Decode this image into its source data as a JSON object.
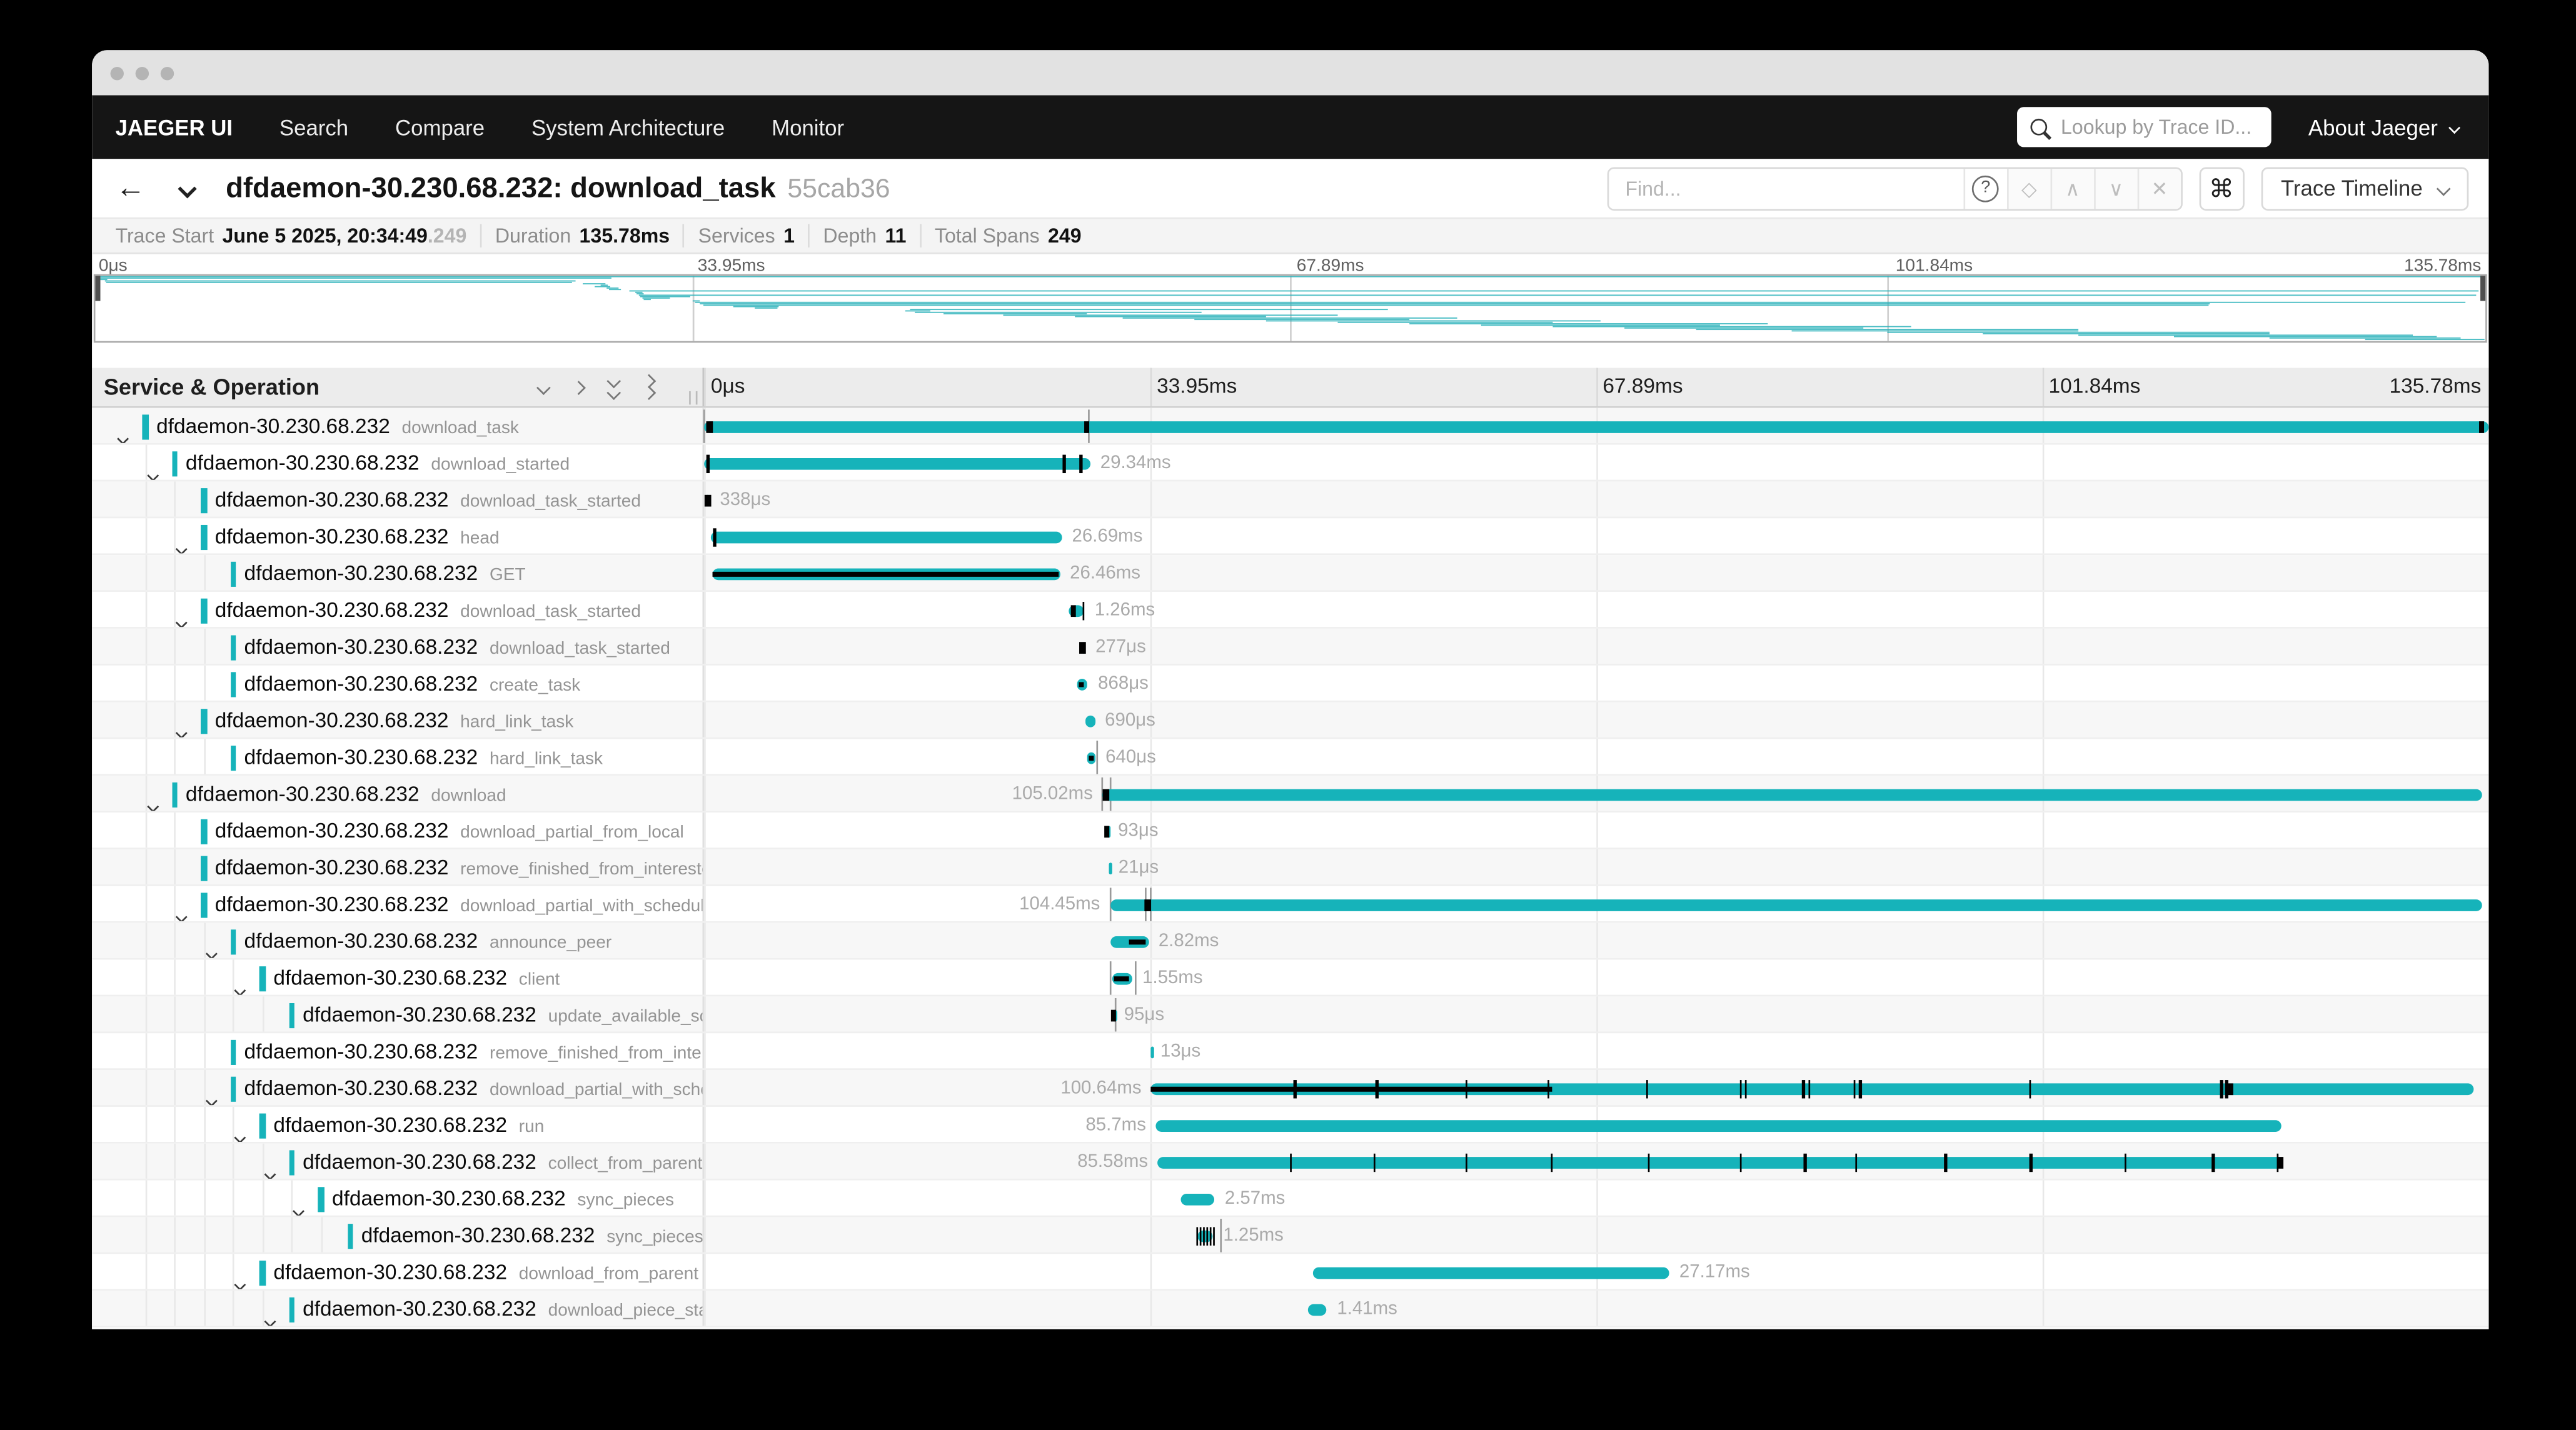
{
  "colors": {
    "accent": "#16B3BA",
    "nav_bg": "#151515",
    "marker_black": "#000000",
    "duration_label": "#aaaaaa"
  },
  "nav": {
    "brand": "JAEGER UI",
    "items": [
      "Search",
      "Compare",
      "System Architecture",
      "Monitor"
    ],
    "lookup_placeholder": "Lookup by Trace ID...",
    "about_label": "About Jaeger"
  },
  "trace_header": {
    "title": "dfdaemon-30.230.68.232: download_task",
    "trace_id_short": "55cab36",
    "find_placeholder": "Find...",
    "help_glyph": "?",
    "diamond_glyph": "◇",
    "prev_glyph": "∧",
    "next_glyph": "∨",
    "clear_glyph": "✕",
    "shortcut_glyph": "⌘",
    "view_select_value": "Trace Timeline",
    "back_glyph": "←"
  },
  "summary": {
    "items": [
      {
        "label": "Trace Start",
        "value": "June 5 2025, 20:34:49",
        "suffix": ".249"
      },
      {
        "label": "Duration",
        "value": "135.78ms",
        "suffix": ""
      },
      {
        "label": "Services",
        "value": "1",
        "suffix": ""
      },
      {
        "label": "Depth",
        "value": "11",
        "suffix": ""
      },
      {
        "label": "Total Spans",
        "value": "249",
        "suffix": ""
      }
    ]
  },
  "timeline": {
    "duration_ms": 135.78,
    "ticks": [
      "0μs",
      "33.95ms",
      "67.89ms",
      "101.84ms",
      "135.78ms"
    ],
    "left_header": "Service & Operation"
  },
  "minimap": {
    "bars": [
      {
        "x": 0,
        "w": 100
      },
      {
        "x": 0,
        "w": 21.6
      },
      {
        "x": 0,
        "w": 0.5
      },
      {
        "x": 0.4,
        "w": 19.7
      },
      {
        "x": 0.45,
        "w": 19.5
      },
      {
        "x": 20.4,
        "w": 0.95
      },
      {
        "x": 21.15,
        "w": 0.3
      },
      {
        "x": 20.9,
        "w": 0.65
      },
      {
        "x": 21.4,
        "w": 0.5
      },
      {
        "x": 21.5,
        "w": 0.5
      },
      {
        "x": 22.35,
        "w": 77.4
      },
      {
        "x": 22.6,
        "w": 0.3
      },
      {
        "x": 22.65,
        "w": 0.3
      },
      {
        "x": 22.75,
        "w": 76.9
      },
      {
        "x": 22.8,
        "w": 2.1
      },
      {
        "x": 22.9,
        "w": 1.15
      },
      {
        "x": 22.95,
        "w": 0.3
      },
      {
        "x": 25,
        "w": 0.3
      },
      {
        "x": 25.1,
        "w": 74.1
      },
      {
        "x": 25.3,
        "w": 63.2
      },
      {
        "x": 25.45,
        "w": 63
      },
      {
        "x": 26.7,
        "w": 1.9
      },
      {
        "x": 27.6,
        "w": 0.95
      },
      {
        "x": 34.1,
        "w": 20
      },
      {
        "x": 33.9,
        "w": 1.05
      },
      {
        "x": 34.3,
        "w": 12
      },
      {
        "x": 35.5,
        "w": 6
      },
      {
        "x": 38,
        "w": 14
      },
      {
        "x": 41,
        "w": 8
      },
      {
        "x": 43,
        "w": 14
      },
      {
        "x": 46,
        "w": 9
      },
      {
        "x": 49,
        "w": 14
      },
      {
        "x": 52,
        "w": 9
      },
      {
        "x": 55,
        "w": 15
      },
      {
        "x": 58,
        "w": 10
      },
      {
        "x": 61,
        "w": 15
      },
      {
        "x": 64,
        "w": 10
      },
      {
        "x": 67,
        "w": 16
      },
      {
        "x": 71,
        "w": 12
      },
      {
        "x": 75,
        "w": 16
      },
      {
        "x": 79,
        "w": 12
      },
      {
        "x": 83,
        "w": 14
      },
      {
        "x": 87,
        "w": 11
      },
      {
        "x": 91,
        "w": 8
      },
      {
        "x": 95,
        "w": 5
      }
    ]
  },
  "spans": [
    {
      "service": "dfdaemon-30.230.68.232",
      "operation": "download_task",
      "depth": 0,
      "expander": true,
      "start": 0,
      "dur": 135.78,
      "label": "",
      "side": "none",
      "vlines": [
        0,
        29.3
      ],
      "sqs": [
        0.4,
        29.1,
        135.3
      ],
      "ticks": [],
      "band": null
    },
    {
      "service": "dfdaemon-30.230.68.232",
      "operation": "download_started",
      "depth": 1,
      "expander": true,
      "start": 0.05,
      "dur": 29.34,
      "label": "29.34ms",
      "side": "right",
      "vlines": [],
      "sqs": [],
      "ticks": [
        0.3,
        27.4,
        28.7
      ],
      "band": null
    },
    {
      "service": "dfdaemon-30.230.68.232",
      "operation": "download_task_started",
      "depth": 2,
      "expander": false,
      "start": 0.1,
      "dur": 0.338,
      "label": "338μs",
      "side": "right",
      "vlines": [],
      "sqs": [
        0.27
      ],
      "ticks": [],
      "band": null
    },
    {
      "service": "dfdaemon-30.230.68.232",
      "operation": "head",
      "depth": 2,
      "expander": true,
      "start": 0.55,
      "dur": 26.69,
      "label": "26.69ms",
      "side": "right",
      "vlines": [],
      "sqs": [],
      "ticks": [
        0.8
      ],
      "band": null
    },
    {
      "service": "dfdaemon-30.230.68.232",
      "operation": "GET",
      "depth": 3,
      "expander": false,
      "start": 0.62,
      "dur": 26.46,
      "label": "26.46ms",
      "side": "right",
      "vlines": [],
      "sqs": [],
      "ticks": [],
      "band": [
        0.7,
        27.0
      ]
    },
    {
      "service": "dfdaemon-30.230.68.232",
      "operation": "download_task_started",
      "depth": 2,
      "expander": true,
      "start": 27.7,
      "dur": 1.26,
      "label": "1.26ms",
      "side": "right",
      "vlines": [],
      "sqs": [
        28.1
      ],
      "ticks": [
        28.85
      ],
      "band": null
    },
    {
      "service": "dfdaemon-30.230.68.232",
      "operation": "download_task_started",
      "depth": 3,
      "expander": false,
      "start": 28.75,
      "dur": 0.277,
      "label": "277μs",
      "side": "right",
      "vlines": [],
      "sqs": [
        28.78
      ],
      "ticks": [],
      "band": null
    },
    {
      "service": "dfdaemon-30.230.68.232",
      "operation": "create_task",
      "depth": 3,
      "expander": false,
      "start": 28.35,
      "dur": 0.868,
      "label": "868μs",
      "side": "right",
      "vlines": [],
      "sqs": [],
      "ticks": [],
      "band": [
        28.5,
        28.95
      ]
    },
    {
      "service": "dfdaemon-30.230.68.232",
      "operation": "hard_link_task",
      "depth": 2,
      "expander": true,
      "start": 29.05,
      "dur": 0.69,
      "label": "690μs",
      "side": "right",
      "vlines": [],
      "sqs": [],
      "ticks": [],
      "band": null
    },
    {
      "service": "dfdaemon-30.230.68.232",
      "operation": "hard_link_task",
      "depth": 3,
      "expander": false,
      "start": 29.15,
      "dur": 0.64,
      "label": "640μs",
      "side": "right",
      "vlines": [
        29.9
      ],
      "sqs": [],
      "ticks": [],
      "band": [
        29.3,
        29.65
      ]
    },
    {
      "service": "dfdaemon-30.230.68.232",
      "operation": "download",
      "depth": 1,
      "expander": true,
      "start": 30.35,
      "dur": 105.02,
      "label": "105.02ms",
      "side": "left",
      "vlines": [
        30.35,
        30.9
      ],
      "sqs": [
        30.6
      ],
      "ticks": [],
      "band": null
    },
    {
      "service": "dfdaemon-30.230.68.232",
      "operation": "download_partial_from_local",
      "depth": 2,
      "expander": false,
      "start": 30.65,
      "dur": 0.093,
      "label": "93μs",
      "side": "right",
      "vlines": [],
      "sqs": [
        30.67
      ],
      "ticks": [],
      "band": null
    },
    {
      "service": "dfdaemon-30.230.68.232",
      "operation": "remove_finished_from_interested",
      "depth": 2,
      "expander": false,
      "start": 30.75,
      "dur": 0.021,
      "label": "21μs",
      "side": "right",
      "vlines": [],
      "sqs": [],
      "ticks": [],
      "band": null
    },
    {
      "service": "dfdaemon-30.230.68.232",
      "operation": "download_partial_with_scheduler",
      "depth": 2,
      "expander": true,
      "start": 30.9,
      "dur": 104.45,
      "label": "104.45ms",
      "side": "left",
      "vlines": [
        30.9,
        33.55,
        34.0
      ],
      "sqs": [
        33.8
      ],
      "ticks": [],
      "band": null
    },
    {
      "service": "dfdaemon-30.230.68.232",
      "operation": "announce_peer",
      "depth": 3,
      "expander": true,
      "start": 31.0,
      "dur": 2.82,
      "label": "2.82ms",
      "side": "right",
      "vlines": [],
      "sqs": [],
      "ticks": [],
      "band": [
        32.35,
        33.55
      ]
    },
    {
      "service": "dfdaemon-30.230.68.232",
      "operation": "client",
      "depth": 4,
      "expander": true,
      "start": 31.05,
      "dur": 1.55,
      "label": "1.55ms",
      "side": "right",
      "vlines": [
        31.0,
        32.85
      ],
      "sqs": [],
      "ticks": [],
      "band": [
        31.15,
        32.3
      ]
    },
    {
      "service": "dfdaemon-30.230.68.232",
      "operation": "update_available_sche...",
      "depth": 5,
      "expander": false,
      "start": 31.1,
      "dur": 0.095,
      "label": "95μs",
      "side": "right",
      "vlines": [
        31.35
      ],
      "sqs": [
        31.13
      ],
      "ticks": [],
      "band": null
    },
    {
      "service": "dfdaemon-30.230.68.232",
      "operation": "remove_finished_from_interested",
      "depth": 3,
      "expander": false,
      "start": 33.95,
      "dur": 0.013,
      "label": "13μs",
      "side": "right",
      "vlines": [],
      "sqs": [],
      "ticks": [],
      "band": null
    },
    {
      "service": "dfdaemon-30.230.68.232",
      "operation": "download_partial_with_schedule...",
      "depth": 3,
      "expander": true,
      "start": 34.05,
      "dur": 100.64,
      "label": "100.64ms",
      "side": "left",
      "vlines": [],
      "sqs": [
        116.2
      ],
      "ticks": [
        45,
        51.2,
        58,
        64.3,
        71.8,
        78.9,
        79.3,
        83.7,
        84.1,
        87.6,
        88,
        100.9,
        115.5,
        115.9
      ],
      "band": [
        34.05,
        64.5
      ]
    },
    {
      "service": "dfdaemon-30.230.68.232",
      "operation": "run",
      "depth": 4,
      "expander": true,
      "start": 34.4,
      "dur": 85.7,
      "label": "85.7ms",
      "side": "left",
      "vlines": [],
      "sqs": [],
      "ticks": [],
      "band": null
    },
    {
      "service": "dfdaemon-30.230.68.232",
      "operation": "collect_from_parents",
      "depth": 5,
      "expander": true,
      "start": 34.55,
      "dur": 85.58,
      "label": "85.58ms",
      "side": "left",
      "vlines": [],
      "sqs": [
        120.0
      ],
      "ticks": [
        44.7,
        51,
        58,
        64.5,
        71.9,
        78.9,
        83.8,
        87.7,
        94.5,
        101,
        108.2,
        114.9,
        119.8
      ],
      "band": null
    },
    {
      "service": "dfdaemon-30.230.68.232",
      "operation": "sync_pieces",
      "depth": 6,
      "expander": true,
      "start": 36.3,
      "dur": 2.57,
      "label": "2.57ms",
      "side": "right",
      "vlines": [],
      "sqs": [],
      "ticks": [],
      "band": null
    },
    {
      "service": "dfdaemon-30.230.68.232",
      "operation": "sync_pieces",
      "depth": 7,
      "expander": false,
      "start": 37.5,
      "dur": 1.25,
      "label": "1.25ms",
      "side": "right",
      "vlines": [
        39.3
      ],
      "sqs": [],
      "ticks": [
        37.55,
        37.8,
        38.05,
        38.3,
        38.55,
        38.8
      ],
      "band": null
    },
    {
      "service": "dfdaemon-30.230.68.232",
      "operation": "download_from_parent",
      "depth": 4,
      "expander": true,
      "start": 46.3,
      "dur": 27.17,
      "label": "27.17ms",
      "side": "right",
      "vlines": [],
      "sqs": [],
      "ticks": [],
      "band": null
    },
    {
      "service": "dfdaemon-30.230.68.232",
      "operation": "download_piece_started",
      "depth": 5,
      "expander": true,
      "start": 46.0,
      "dur": 1.41,
      "label": "1.41ms",
      "side": "right",
      "vlines": [],
      "sqs": [],
      "ticks": [],
      "band": null
    }
  ]
}
